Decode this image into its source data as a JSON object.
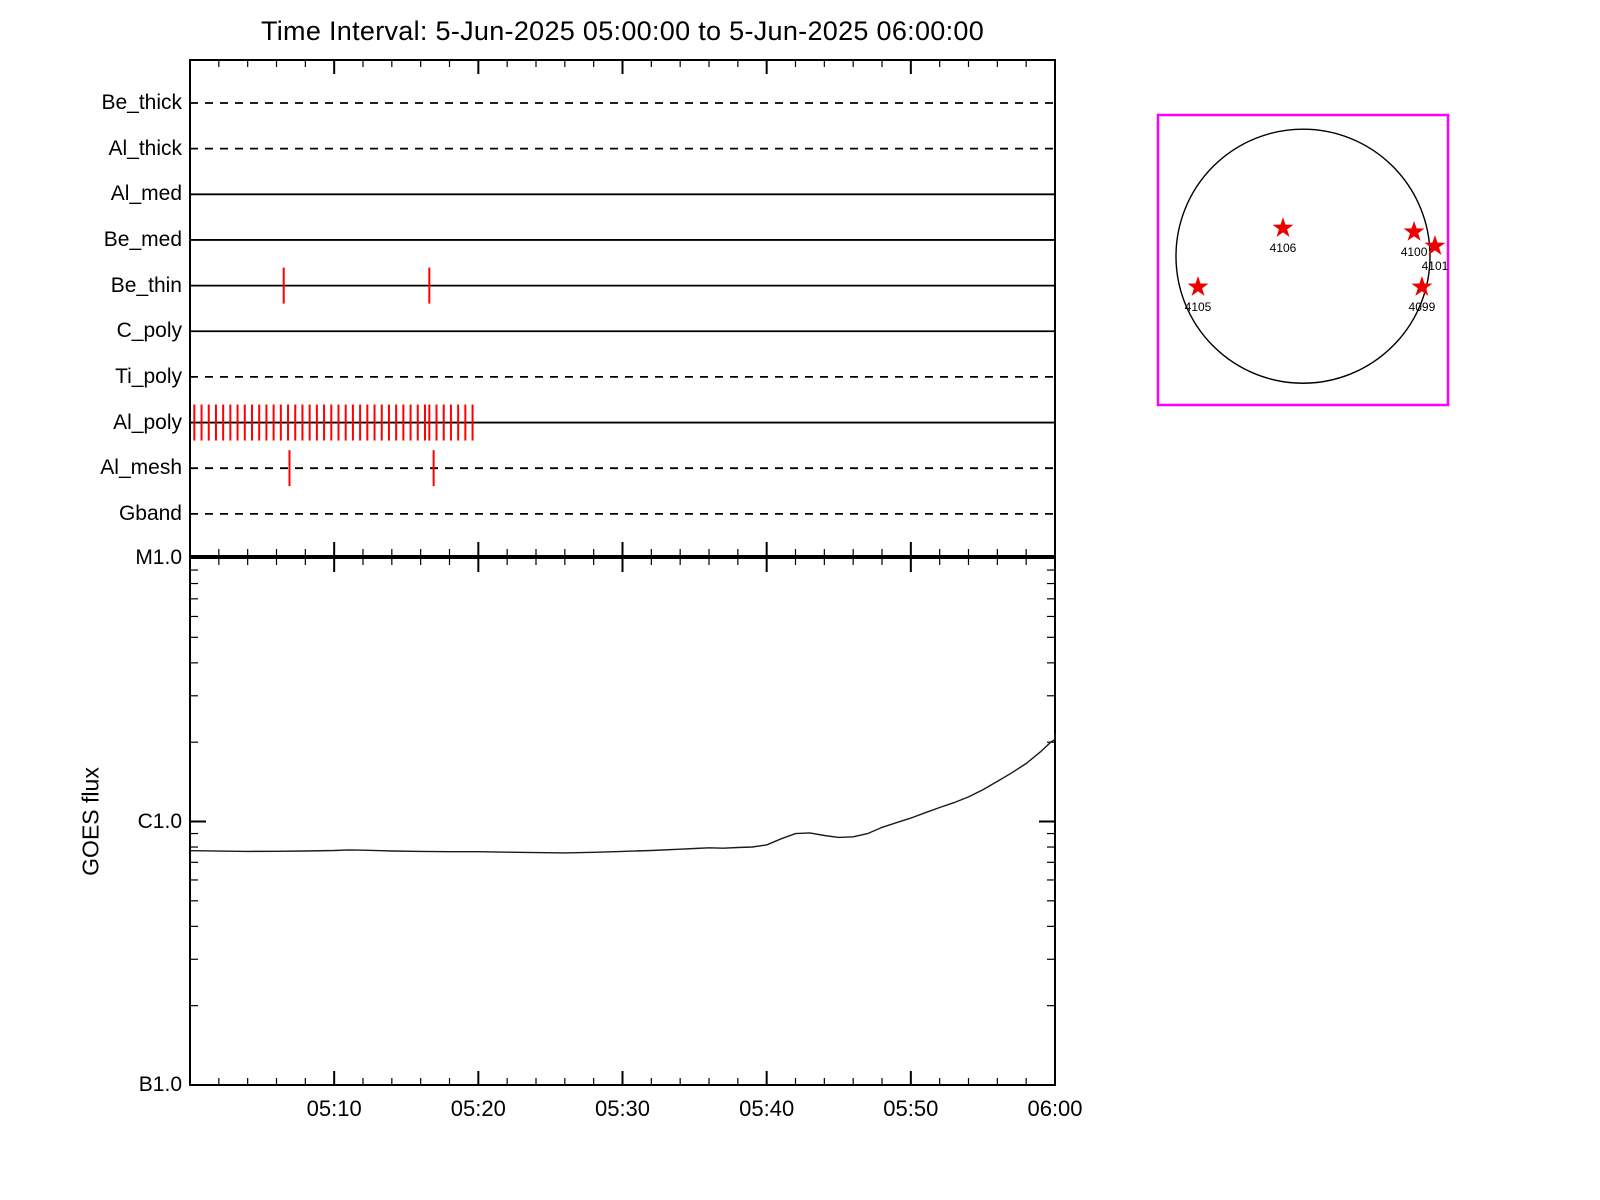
{
  "title": "Time Interval: 5-Jun-2025 05:00:00 to 5-Jun-2025 06:00:00",
  "colors": {
    "axis": "#000000",
    "event_tick": "#ff0000",
    "goes_line": "#1a1a1a",
    "map_border": "#ff00ff",
    "star": "#ee0000"
  },
  "chart_data": [
    {
      "name": "xrt_filter_timeline",
      "type": "table",
      "x_axis": {
        "unit": "minutes after 05:00",
        "range": [
          0,
          60
        ],
        "major_tick_minutes": 10,
        "minor_tick_minutes": 2
      },
      "rows": [
        {
          "label": "Be_thick",
          "line_style": "dashed",
          "event_ticks_min": []
        },
        {
          "label": "Al_thick",
          "line_style": "dashed",
          "event_ticks_min": []
        },
        {
          "label": "Al_med",
          "line_style": "solid",
          "event_ticks_min": []
        },
        {
          "label": "Be_med",
          "line_style": "solid",
          "event_ticks_min": []
        },
        {
          "label": "Be_thin",
          "line_style": "solid",
          "event_ticks_min": [
            6.5,
            16.6
          ]
        },
        {
          "label": "C_poly",
          "line_style": "solid",
          "event_ticks_min": []
        },
        {
          "label": "Ti_poly",
          "line_style": "dashed",
          "event_ticks_min": []
        },
        {
          "label": "Al_poly",
          "line_style": "solid",
          "event_ticks_min": [
            0.3,
            0.8,
            1.3,
            1.8,
            2.3,
            2.8,
            3.3,
            3.8,
            4.3,
            4.8,
            5.3,
            5.8,
            6.3,
            6.8,
            7.3,
            7.8,
            8.3,
            8.8,
            9.3,
            9.8,
            10.3,
            10.8,
            11.3,
            11.8,
            12.3,
            12.8,
            13.3,
            13.8,
            14.3,
            14.8,
            15.3,
            15.8,
            16.3,
            16.6,
            17.1,
            17.6,
            18.1,
            18.6,
            19.1,
            19.6
          ]
        },
        {
          "label": "Al_mesh",
          "line_style": "dashed",
          "event_ticks_min": [
            6.9,
            16.9
          ]
        },
        {
          "label": "Gband",
          "line_style": "dashed",
          "event_ticks_min": []
        }
      ]
    },
    {
      "name": "goes_flux",
      "type": "line",
      "ylabel": "GOES flux",
      "y_scale": "log",
      "y_ticks": [
        {
          "label": "M1.0",
          "flux_c_units": 10
        },
        {
          "label": "C1.0",
          "flux_c_units": 1
        },
        {
          "label": "B1.0",
          "flux_c_units": 0.1
        }
      ],
      "x_ticks": [
        {
          "label": "05:10",
          "minute": 10
        },
        {
          "label": "05:20",
          "minute": 20
        },
        {
          "label": "05:30",
          "minute": 30
        },
        {
          "label": "05:40",
          "minute": 40
        },
        {
          "label": "05:50",
          "minute": 50
        },
        {
          "label": "06:00",
          "minute": 60
        }
      ],
      "series": [
        {
          "name": "GOES flux",
          "x_minutes": [
            0,
            1,
            2,
            4,
            6,
            8,
            10,
            11,
            12,
            14,
            16,
            18,
            20,
            22,
            24,
            26,
            28,
            30,
            32,
            34,
            35,
            36,
            37,
            38,
            39,
            40,
            41,
            42,
            43,
            44,
            45,
            46,
            47,
            48,
            49,
            50,
            51,
            52,
            53,
            54,
            55,
            56,
            57,
            58,
            59,
            59.7,
            60,
            60
          ],
          "flux_c_units": [
            0.775,
            0.774,
            0.772,
            0.77,
            0.771,
            0.773,
            0.776,
            0.78,
            0.778,
            0.773,
            0.77,
            0.768,
            0.768,
            0.765,
            0.762,
            0.76,
            0.764,
            0.77,
            0.776,
            0.785,
            0.79,
            0.795,
            0.792,
            0.797,
            0.8,
            0.815,
            0.86,
            0.9,
            0.905,
            0.885,
            0.87,
            0.875,
            0.9,
            0.95,
            0.99,
            1.03,
            1.08,
            1.13,
            1.18,
            1.24,
            1.32,
            1.42,
            1.53,
            1.66,
            1.84,
            2.0,
            2.05,
            2.15
          ]
        }
      ]
    },
    {
      "name": "full_disk_map",
      "type": "scatter",
      "disk": {
        "cx": 0.5,
        "cy": 0.487,
        "r": 0.438
      },
      "active_regions": [
        {
          "label": "4106",
          "fx": 0.431,
          "fy": 0.39
        },
        {
          "label": "4100",
          "fx": 0.883,
          "fy": 0.403
        },
        {
          "label": "4101",
          "fx": 0.955,
          "fy": 0.452
        },
        {
          "label": "4105",
          "fx": 0.138,
          "fy": 0.593
        },
        {
          "label": "4099",
          "fx": 0.91,
          "fy": 0.593
        }
      ]
    }
  ]
}
